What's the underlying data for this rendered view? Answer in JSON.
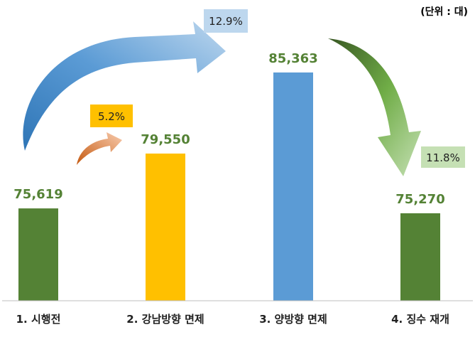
{
  "unit_label": "(단위 : 대)",
  "colors": {
    "green": "#548235",
    "yellow": "#FFC000",
    "blue": "#5B9BD5",
    "value_text": "#548235",
    "axis": "#BFBFBF",
    "box_yellow": "#FFC000",
    "box_blue": "#BDD7EE",
    "box_green": "#C5E0B4"
  },
  "chart_data": {
    "type": "bar",
    "title": "",
    "xlabel": "",
    "ylabel": "",
    "categories": [
      "1. 시행전",
      "2. 강남방향 면제",
      "3. 양방향 면제",
      "4. 징수 재개"
    ],
    "values": [
      75619,
      79550,
      85363,
      75270
    ],
    "value_labels": [
      "75,619",
      "79,550",
      "85,363",
      "75,270"
    ],
    "bar_colors": [
      "#548235",
      "#FFC000",
      "#5B9BD5",
      "#548235"
    ],
    "ylim": [
      69000,
      87500
    ],
    "annotations": [
      {
        "text": "5.2%",
        "style": "yellow-box"
      },
      {
        "text": "12.9%",
        "style": "blue-box"
      },
      {
        "text": "11.8%",
        "style": "green-box"
      }
    ]
  }
}
